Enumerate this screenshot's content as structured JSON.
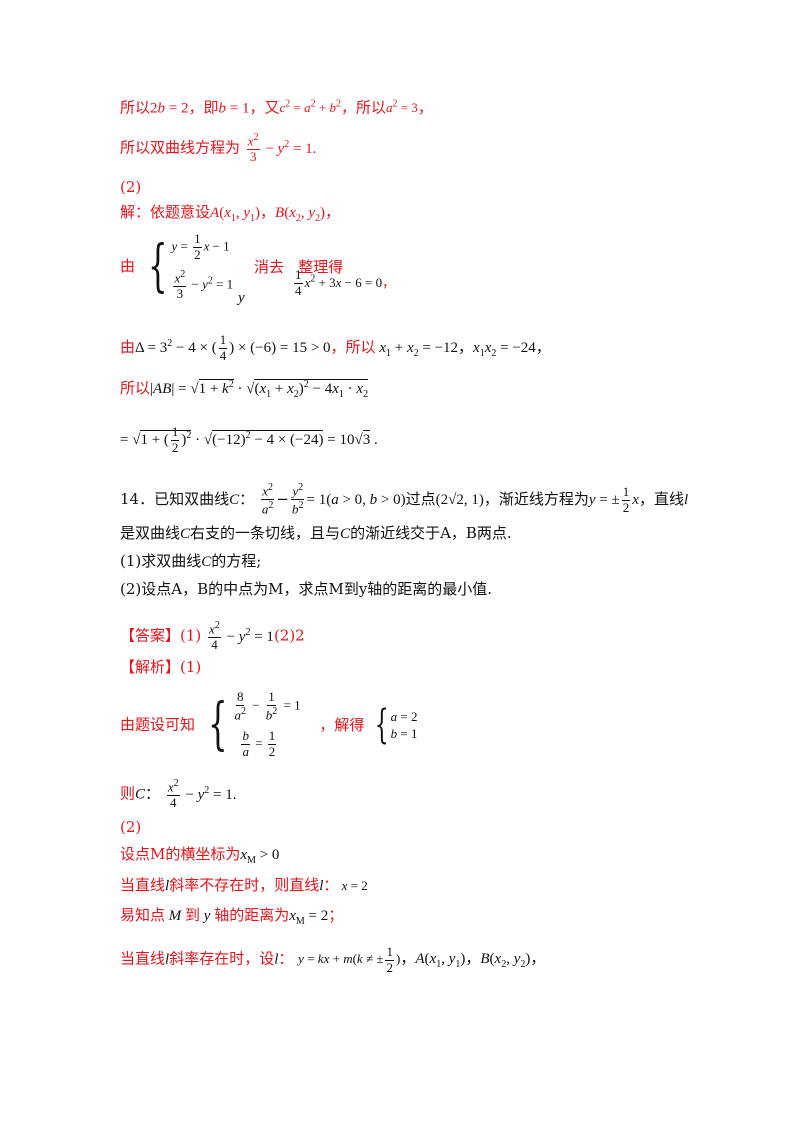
{
  "colors": {
    "accent": "#e8131a",
    "text": "#111111"
  },
  "lines": {
    "l1_a": "所以",
    "l1_b": "，即",
    "l1_c": "，又",
    "l1_d": "，所以",
    "l1_e": "，",
    "l2": "所以双曲线方程为",
    "p2_label": "(2)",
    "jie": "解：依题意设",
    "you": "由",
    "xiaoqu": "消去",
    "zhengli": "整理得",
    "y_var": "y",
    "you2": "由",
    "suoyi": "，所以",
    "suoyi_ab": "所以",
    "q14_a": "14．已知双曲线",
    "q14_b": "：",
    "q14_c": "过点",
    "q14_d": "，渐近线方程为",
    "q14_e": "，直线",
    "q14_line2_a": "是双曲线",
    "q14_line2_b": "右支的一条切线，且与",
    "q14_line2_c": "的渐近线交于A，B两点.",
    "q14_q1": "(1)求双曲线",
    "q14_q1b": "的方程;",
    "q14_q2": "(2)设点A，B的中点为M，求点M到y轴的距离的最小值.",
    "answer_label": "【答案】",
    "answer_p1": "(1)",
    "answer_p2": "(2)2",
    "analysis_label": "【解析】",
    "analysis_p1": "(1)",
    "youti": "由题设可知",
    "jiede": "，解得",
    "ze": "则",
    "p2b": "(2)",
    "s1": "设点M的横坐标为",
    "s2_a": "当直线",
    "s2_b": "斜率不存在时，则直线",
    "s2_c": "：",
    "s3_a": "易知点",
    "s3_b": "到",
    "s3_c": "轴的距离为",
    "s3_d": "；",
    "s4_a": "当直线",
    "s4_b": "斜率存在时，设",
    "s4_c": "："
  }
}
